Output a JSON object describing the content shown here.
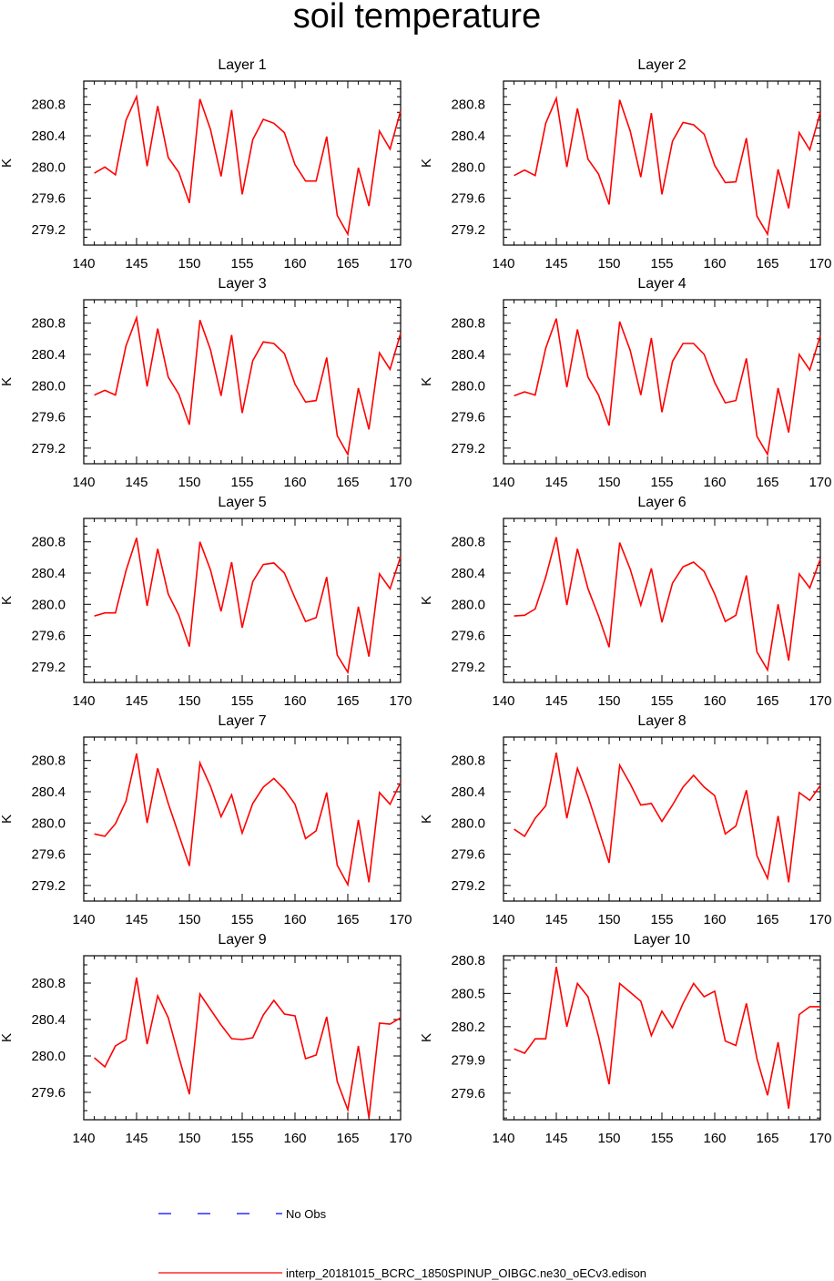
{
  "title": "soil temperature",
  "colors": {
    "model": "#ff0000",
    "obs": "#0000ff",
    "axes": "#000000"
  },
  "legend": [
    {
      "label": "No Obs",
      "style": "dashed",
      "color": "#0000ff"
    },
    {
      "label": "interp_20181015_BCRC_1850SPINUP_OIBGC.ne30_oECv3.edison",
      "style": "solid",
      "color": "#ff0000"
    }
  ],
  "chart_data": [
    {
      "type": "line",
      "title": "Layer 1",
      "xlabel": "",
      "ylabel": "K",
      "xlim": [
        140,
        170
      ],
      "xticks": [
        140,
        145,
        150,
        155,
        160,
        165,
        170
      ],
      "ylim": [
        279.0,
        281.1
      ],
      "yticks": [
        "279.2",
        "279.6",
        "280.0",
        "280.4",
        "280.8"
      ],
      "x": [
        141,
        142,
        143,
        144,
        145,
        146,
        147,
        148,
        149,
        150,
        151,
        152,
        153,
        154,
        155,
        156,
        157,
        158,
        159,
        160,
        161,
        162,
        163,
        164,
        165,
        166,
        167,
        168,
        169,
        170
      ],
      "series": [
        {
          "name": "interp_20181015_BCRC_1850SPINUP_OIBGC.ne30_oECv3.edison",
          "values": [
            279.92,
            280.0,
            279.9,
            280.6,
            280.9,
            280.01,
            280.78,
            280.12,
            279.93,
            279.54,
            280.87,
            280.48,
            279.88,
            280.73,
            279.65,
            280.35,
            280.61,
            280.56,
            280.44,
            280.03,
            279.82,
            279.82,
            280.39,
            279.38,
            279.14,
            279.99,
            279.5,
            280.46,
            280.23,
            280.72
          ]
        }
      ]
    },
    {
      "type": "line",
      "title": "Layer 2",
      "xlabel": "",
      "ylabel": "K",
      "xlim": [
        140,
        170
      ],
      "xticks": [
        140,
        145,
        150,
        155,
        160,
        165,
        170
      ],
      "ylim": [
        279.0,
        281.1
      ],
      "yticks": [
        "279.2",
        "279.6",
        "280.0",
        "280.4",
        "280.8"
      ],
      "x": [
        141,
        142,
        143,
        144,
        145,
        146,
        147,
        148,
        149,
        150,
        151,
        152,
        153,
        154,
        155,
        156,
        157,
        158,
        159,
        160,
        161,
        162,
        163,
        164,
        165,
        166,
        167,
        168,
        169,
        170
      ],
      "series": [
        {
          "name": "interp_20181015_BCRC_1850SPINUP_OIBGC.ne30_oECv3.edison",
          "values": [
            279.89,
            279.96,
            279.89,
            280.56,
            280.88,
            280.0,
            280.75,
            280.1,
            279.91,
            279.52,
            280.86,
            280.46,
            279.87,
            280.69,
            279.65,
            280.33,
            280.57,
            280.54,
            280.42,
            280.02,
            279.8,
            279.81,
            280.37,
            279.37,
            279.14,
            279.97,
            279.47,
            280.44,
            280.22,
            280.7
          ]
        }
      ]
    },
    {
      "type": "line",
      "title": "Layer 3",
      "xlabel": "",
      "ylabel": "K",
      "xlim": [
        140,
        170
      ],
      "xticks": [
        140,
        145,
        150,
        155,
        160,
        165,
        170
      ],
      "ylim": [
        279.0,
        281.1
      ],
      "yticks": [
        "279.2",
        "279.6",
        "280.0",
        "280.4",
        "280.8"
      ],
      "x": [
        141,
        142,
        143,
        144,
        145,
        146,
        147,
        148,
        149,
        150,
        151,
        152,
        153,
        154,
        155,
        156,
        157,
        158,
        159,
        160,
        161,
        162,
        163,
        164,
        165,
        166,
        167,
        168,
        169,
        170
      ],
      "series": [
        {
          "name": "interp_20181015_BCRC_1850SPINUP_OIBGC.ne30_oECv3.edison",
          "values": [
            279.88,
            279.94,
            279.88,
            280.51,
            280.87,
            279.99,
            280.73,
            280.11,
            279.89,
            279.5,
            280.84,
            280.46,
            279.87,
            280.65,
            279.65,
            280.32,
            280.56,
            280.54,
            280.41,
            280.02,
            279.79,
            279.81,
            280.36,
            279.36,
            279.12,
            279.97,
            279.44,
            280.42,
            280.21,
            280.67
          ]
        }
      ]
    },
    {
      "type": "line",
      "title": "Layer 4",
      "xlabel": "",
      "ylabel": "K",
      "xlim": [
        140,
        170
      ],
      "xticks": [
        140,
        145,
        150,
        155,
        160,
        165,
        170
      ],
      "ylim": [
        279.0,
        281.1
      ],
      "yticks": [
        "279.2",
        "279.6",
        "280.0",
        "280.4",
        "280.8"
      ],
      "x": [
        141,
        142,
        143,
        144,
        145,
        146,
        147,
        148,
        149,
        150,
        151,
        152,
        153,
        154,
        155,
        156,
        157,
        158,
        159,
        160,
        161,
        162,
        163,
        164,
        165,
        166,
        167,
        168,
        169,
        170
      ],
      "series": [
        {
          "name": "interp_20181015_BCRC_1850SPINUP_OIBGC.ne30_oECv3.edison",
          "values": [
            279.87,
            279.92,
            279.88,
            280.48,
            280.86,
            279.98,
            280.72,
            280.11,
            279.88,
            279.49,
            280.82,
            280.45,
            279.88,
            280.61,
            279.66,
            280.31,
            280.54,
            280.54,
            280.4,
            280.04,
            279.78,
            279.81,
            280.35,
            279.35,
            279.12,
            279.97,
            279.4,
            280.4,
            280.2,
            280.64
          ]
        }
      ]
    },
    {
      "type": "line",
      "title": "Layer 5",
      "xlabel": "",
      "ylabel": "K",
      "xlim": [
        140,
        170
      ],
      "xticks": [
        140,
        145,
        150,
        155,
        160,
        165,
        170
      ],
      "ylim": [
        279.0,
        281.1
      ],
      "yticks": [
        "279.2",
        "279.6",
        "280.0",
        "280.4",
        "280.8"
      ],
      "x": [
        141,
        142,
        143,
        144,
        145,
        146,
        147,
        148,
        149,
        150,
        151,
        152,
        153,
        154,
        155,
        156,
        157,
        158,
        159,
        160,
        161,
        162,
        163,
        164,
        165,
        166,
        167,
        168,
        169,
        170
      ],
      "series": [
        {
          "name": "interp_20181015_BCRC_1850SPINUP_OIBGC.ne30_oECv3.edison",
          "values": [
            279.85,
            279.89,
            279.89,
            280.43,
            280.85,
            279.98,
            280.71,
            280.13,
            279.86,
            279.46,
            280.8,
            280.44,
            279.91,
            280.54,
            279.7,
            280.29,
            280.51,
            280.53,
            280.4,
            280.08,
            279.78,
            279.83,
            280.35,
            279.35,
            279.13,
            279.97,
            279.33,
            280.39,
            280.2,
            280.61
          ]
        }
      ]
    },
    {
      "type": "line",
      "title": "Layer 6",
      "xlabel": "",
      "ylabel": "K",
      "xlim": [
        140,
        170
      ],
      "xticks": [
        140,
        145,
        150,
        155,
        160,
        165,
        170
      ],
      "ylim": [
        279.0,
        281.1
      ],
      "yticks": [
        "279.2",
        "279.6",
        "280.0",
        "280.4",
        "280.8"
      ],
      "x": [
        141,
        142,
        143,
        144,
        145,
        146,
        147,
        148,
        149,
        150,
        151,
        152,
        153,
        154,
        155,
        156,
        157,
        158,
        159,
        160,
        161,
        162,
        163,
        164,
        165,
        166,
        167,
        168,
        169,
        170
      ],
      "series": [
        {
          "name": "interp_20181015_BCRC_1850SPINUP_OIBGC.ne30_oECv3.edison",
          "values": [
            279.85,
            279.86,
            279.94,
            280.35,
            280.86,
            279.99,
            280.71,
            280.2,
            279.85,
            279.45,
            280.79,
            280.45,
            279.99,
            280.46,
            279.77,
            280.27,
            280.48,
            280.54,
            280.42,
            280.13,
            279.78,
            279.86,
            280.37,
            279.39,
            279.16,
            280.0,
            279.28,
            280.39,
            280.21,
            280.58
          ]
        }
      ]
    },
    {
      "type": "line",
      "title": "Layer 7",
      "xlabel": "",
      "ylabel": "K",
      "xlim": [
        140,
        170
      ],
      "xticks": [
        140,
        145,
        150,
        155,
        160,
        165,
        170
      ],
      "ylim": [
        279.0,
        281.1
      ],
      "yticks": [
        "279.2",
        "279.6",
        "280.0",
        "280.4",
        "280.8"
      ],
      "x": [
        141,
        142,
        143,
        144,
        145,
        146,
        147,
        148,
        149,
        150,
        151,
        152,
        153,
        154,
        155,
        156,
        157,
        158,
        159,
        160,
        161,
        162,
        163,
        164,
        165,
        166,
        167,
        168,
        169,
        170
      ],
      "series": [
        {
          "name": "interp_20181015_BCRC_1850SPINUP_OIBGC.ne30_oECv3.edison",
          "values": [
            279.86,
            279.83,
            279.99,
            280.28,
            280.89,
            280.0,
            280.7,
            280.25,
            279.85,
            279.45,
            280.77,
            280.47,
            280.08,
            280.36,
            279.87,
            280.25,
            280.46,
            280.57,
            280.43,
            280.24,
            279.8,
            279.9,
            280.39,
            279.46,
            279.21,
            280.04,
            279.24,
            280.39,
            280.24,
            280.52
          ]
        }
      ]
    },
    {
      "type": "line",
      "title": "Layer 8",
      "xlabel": "",
      "ylabel": "K",
      "xlim": [
        140,
        170
      ],
      "xticks": [
        140,
        145,
        150,
        155,
        160,
        165,
        170
      ],
      "ylim": [
        279.0,
        281.1
      ],
      "yticks": [
        "279.2",
        "279.6",
        "280.0",
        "280.4",
        "280.8"
      ],
      "x": [
        141,
        142,
        143,
        144,
        145,
        146,
        147,
        148,
        149,
        150,
        151,
        152,
        153,
        154,
        155,
        156,
        157,
        158,
        159,
        160,
        161,
        162,
        163,
        164,
        165,
        166,
        167,
        168,
        169,
        170
      ],
      "series": [
        {
          "name": "interp_20181015_BCRC_1850SPINUP_OIBGC.ne30_oECv3.edison",
          "values": [
            279.92,
            279.83,
            280.06,
            280.22,
            280.9,
            280.06,
            280.7,
            280.34,
            279.92,
            279.49,
            280.74,
            280.5,
            280.23,
            280.25,
            280.02,
            280.23,
            280.46,
            280.61,
            280.46,
            280.35,
            279.86,
            279.96,
            280.42,
            279.58,
            279.29,
            280.09,
            279.24,
            280.39,
            280.29,
            280.48
          ]
        }
      ]
    },
    {
      "type": "line",
      "title": "Layer 9",
      "xlabel": "",
      "ylabel": "K",
      "xlim": [
        140,
        170
      ],
      "xticks": [
        140,
        145,
        150,
        155,
        160,
        165,
        170
      ],
      "ylim": [
        279.3,
        281.1
      ],
      "yticks": [
        "279.6",
        "280.0",
        "280.4",
        "280.8"
      ],
      "x": [
        141,
        142,
        143,
        144,
        145,
        146,
        147,
        148,
        149,
        150,
        151,
        152,
        153,
        154,
        155,
        156,
        157,
        158,
        159,
        160,
        161,
        162,
        163,
        164,
        165,
        166,
        167,
        168,
        169,
        170
      ],
      "series": [
        {
          "name": "interp_20181015_BCRC_1850SPINUP_OIBGC.ne30_oECv3.edison",
          "values": [
            279.98,
            279.88,
            280.11,
            280.18,
            280.86,
            280.13,
            280.66,
            280.42,
            279.99,
            279.58,
            280.68,
            280.51,
            280.34,
            280.19,
            280.18,
            280.2,
            280.45,
            280.61,
            280.46,
            280.44,
            279.97,
            280.01,
            280.43,
            279.72,
            279.41,
            280.11,
            279.32,
            280.36,
            280.35,
            280.42
          ]
        }
      ]
    },
    {
      "type": "line",
      "title": "Layer 10",
      "xlabel": "",
      "ylabel": "K",
      "xlim": [
        140,
        170
      ],
      "xticks": [
        140,
        145,
        150,
        155,
        160,
        165,
        170
      ],
      "ylim": [
        279.36,
        280.84
      ],
      "yticks": [
        "279.6",
        "279.9",
        "280.2",
        "280.5",
        "280.8"
      ],
      "x": [
        141,
        142,
        143,
        144,
        145,
        146,
        147,
        148,
        149,
        150,
        151,
        152,
        153,
        154,
        155,
        156,
        157,
        158,
        159,
        160,
        161,
        162,
        163,
        164,
        165,
        166,
        167,
        168,
        169,
        170
      ],
      "series": [
        {
          "name": "interp_20181015_BCRC_1850SPINUP_OIBGC.ne30_oECv3.edison",
          "values": [
            280.0,
            279.96,
            280.09,
            280.09,
            280.74,
            280.2,
            280.59,
            280.47,
            280.11,
            279.68,
            280.59,
            280.51,
            280.43,
            280.12,
            280.34,
            280.19,
            280.41,
            280.59,
            280.47,
            280.52,
            280.07,
            280.03,
            280.41,
            279.91,
            279.58,
            280.06,
            279.46,
            280.31,
            280.38,
            280.38
          ]
        }
      ]
    }
  ]
}
